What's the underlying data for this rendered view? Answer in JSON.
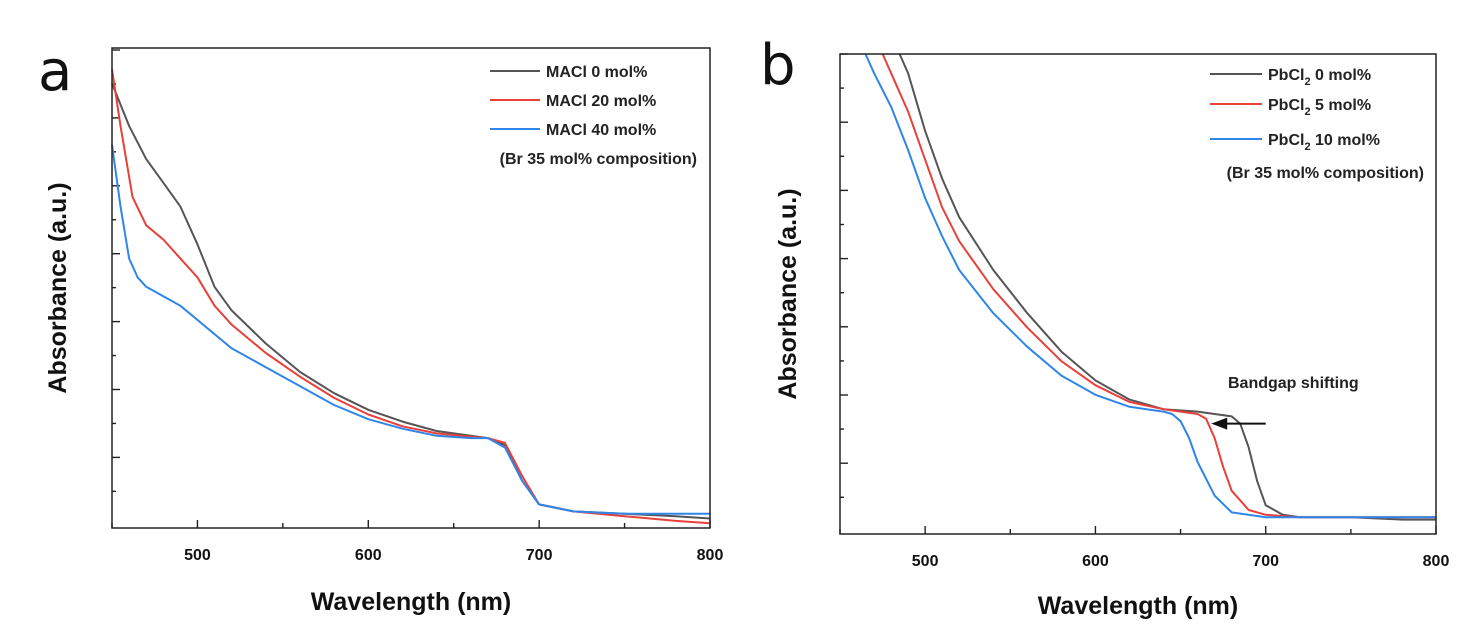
{
  "chart_data": [
    {
      "type": "line",
      "panel": "a",
      "title": "",
      "xlabel": "Wavelength (nm)",
      "ylabel": "Absorbance (a.u.)",
      "xlim": [
        450,
        800
      ],
      "ylim": [
        0,
        1
      ],
      "xticks": [
        500,
        600,
        700,
        800
      ],
      "yticks_labeled": false,
      "legend_position": "top-right",
      "legend_note": "(Br 35 mol% composition)",
      "series": [
        {
          "name": "MACl 0 mol%",
          "label_main": "MACl 0 mol%",
          "color": "#555555",
          "x": [
            450,
            460,
            470,
            480,
            490,
            500,
            510,
            520,
            540,
            560,
            580,
            600,
            620,
            640,
            660,
            670,
            680,
            690,
            700,
            720,
            750,
            780,
            800
          ],
          "y": [
            0.94,
            0.85,
            0.78,
            0.73,
            0.68,
            0.6,
            0.51,
            0.46,
            0.39,
            0.33,
            0.285,
            0.25,
            0.225,
            0.205,
            0.195,
            0.19,
            0.175,
            0.1,
            0.05,
            0.035,
            0.03,
            0.025,
            0.02
          ]
        },
        {
          "name": "MACl 20 mol%",
          "label_main": "MACl 20 mol%",
          "color": "#e8403a",
          "x": [
            450,
            455,
            462,
            470,
            480,
            490,
            500,
            510,
            520,
            540,
            560,
            580,
            600,
            620,
            640,
            660,
            670,
            680,
            690,
            700,
            720,
            750,
            780,
            800
          ],
          "y": [
            0.97,
            0.85,
            0.7,
            0.64,
            0.61,
            0.57,
            0.53,
            0.47,
            0.43,
            0.37,
            0.32,
            0.275,
            0.24,
            0.215,
            0.2,
            0.193,
            0.19,
            0.18,
            0.11,
            0.05,
            0.035,
            0.025,
            0.015,
            0.01
          ]
        },
        {
          "name": "MACl 40 mol%",
          "label_main": "MACl 40 mol%",
          "color": "#2f86e8",
          "x": [
            450,
            455,
            460,
            465,
            470,
            480,
            490,
            500,
            510,
            520,
            540,
            560,
            580,
            600,
            620,
            640,
            660,
            670,
            680,
            690,
            700,
            720,
            750,
            780,
            800
          ],
          "y": [
            0.81,
            0.68,
            0.57,
            0.53,
            0.51,
            0.49,
            0.47,
            0.44,
            0.41,
            0.38,
            0.34,
            0.3,
            0.26,
            0.23,
            0.21,
            0.195,
            0.19,
            0.19,
            0.17,
            0.1,
            0.05,
            0.035,
            0.03,
            0.03,
            0.03
          ]
        }
      ]
    },
    {
      "type": "line",
      "panel": "b",
      "title": "",
      "xlabel": "Wavelength (nm)",
      "ylabel": "Absorbance (a.u.)",
      "xlim": [
        450,
        800
      ],
      "ylim": [
        0,
        1
      ],
      "xticks": [
        500,
        600,
        700,
        800
      ],
      "yticks_labeled": false,
      "legend_position": "top-right",
      "legend_note": "(Br 35 mol% composition)",
      "annotation": {
        "text": "Bandgap shifting",
        "arrow_from_x": 700,
        "arrow_to_x": 668,
        "arrow_y": 0.23
      },
      "series": [
        {
          "name": "PbCl2 0 mol%",
          "label_prefix": "PbCl",
          "label_sub": "2",
          "label_suffix": " 0 mol%",
          "color": "#555555",
          "x": [
            485,
            490,
            500,
            510,
            520,
            540,
            560,
            580,
            600,
            620,
            640,
            660,
            670,
            680,
            685,
            690,
            695,
            700,
            710,
            720,
            750,
            780,
            800
          ],
          "y": [
            1.0,
            0.96,
            0.84,
            0.74,
            0.66,
            0.55,
            0.46,
            0.38,
            0.32,
            0.28,
            0.26,
            0.255,
            0.25,
            0.245,
            0.23,
            0.18,
            0.11,
            0.06,
            0.04,
            0.035,
            0.035,
            0.03,
            0.03
          ]
        },
        {
          "name": "PbCl2 5 mol%",
          "label_prefix": "PbCl",
          "label_sub": "2",
          "label_suffix": " 5 mol%",
          "color": "#e8403a",
          "x": [
            475,
            480,
            490,
            500,
            510,
            520,
            540,
            560,
            580,
            600,
            620,
            640,
            650,
            660,
            665,
            670,
            675,
            680,
            690,
            700,
            720,
            750,
            780,
            800
          ],
          "y": [
            1.0,
            0.96,
            0.88,
            0.78,
            0.68,
            0.61,
            0.51,
            0.43,
            0.36,
            0.31,
            0.275,
            0.26,
            0.255,
            0.25,
            0.24,
            0.2,
            0.14,
            0.09,
            0.05,
            0.04,
            0.035,
            0.035,
            0.035,
            0.035
          ]
        },
        {
          "name": "PbCl2 10 mol%",
          "label_prefix": "PbCl",
          "label_sub": "2",
          "label_suffix": " 10 mol%",
          "color": "#2f86e8",
          "x": [
            465,
            470,
            480,
            490,
            500,
            510,
            520,
            540,
            560,
            580,
            600,
            620,
            640,
            645,
            650,
            655,
            660,
            670,
            680,
            700,
            720,
            750,
            780,
            800
          ],
          "y": [
            1.0,
            0.96,
            0.89,
            0.8,
            0.7,
            0.62,
            0.55,
            0.46,
            0.39,
            0.33,
            0.29,
            0.265,
            0.255,
            0.25,
            0.235,
            0.2,
            0.15,
            0.08,
            0.045,
            0.035,
            0.035,
            0.035,
            0.035,
            0.035
          ]
        }
      ]
    }
  ]
}
